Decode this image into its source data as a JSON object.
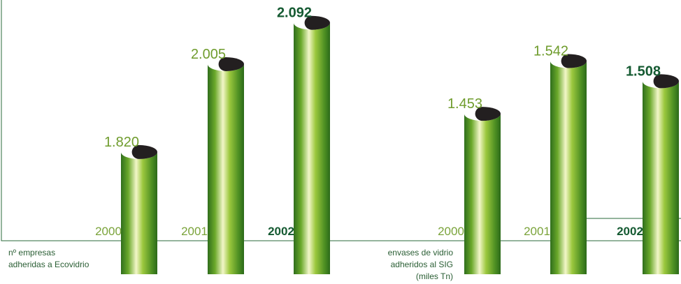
{
  "chart_data": [
    {
      "type": "bar",
      "title_lines": [
        "nº empresas",
        "adheridas a Ecovidrio"
      ],
      "categories": [
        "2000",
        "2001",
        "2002"
      ],
      "values": [
        1820,
        2005,
        2092
      ],
      "value_labels": [
        "1.820",
        "2.005",
        "2.092"
      ],
      "ylim": [
        1560,
        2140
      ],
      "color": "#6fae2c"
    },
    {
      "type": "bar",
      "title_lines": [
        "envases de vidrio",
        "adheridos al SIG",
        "(miles Tn)"
      ],
      "categories": [
        "2000",
        "2001",
        "2002"
      ],
      "values": [
        1453,
        1542,
        1508
      ],
      "value_labels": [
        "1.453",
        "1.542",
        "1.508"
      ],
      "ylim": [
        1180,
        1645
      ],
      "color": "#6fae2c"
    }
  ]
}
